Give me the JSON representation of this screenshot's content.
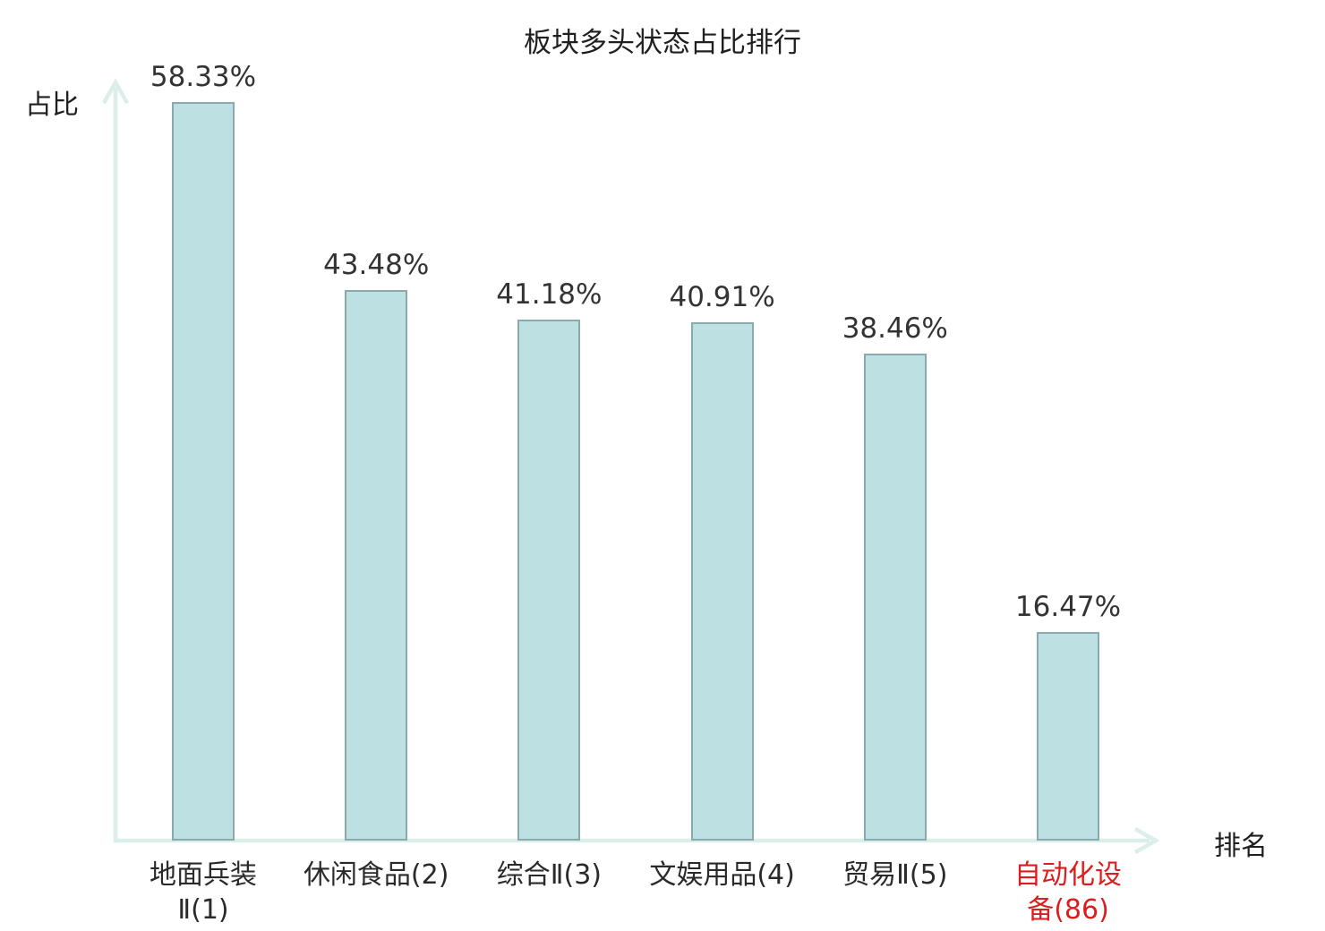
{
  "chart_data": {
    "type": "bar",
    "title": "板块多头状态占比排行",
    "xlabel": "排名",
    "ylabel": "占比",
    "ylim": [
      0,
      60
    ],
    "grid": false,
    "legend": "none",
    "categories": [
      "地面兵装Ⅱ(1)",
      "休闲食品(2)",
      "综合Ⅱ(3)",
      "文娱用品(4)",
      "贸易Ⅱ(5)",
      "自动化设备(86)"
    ],
    "category_lines": [
      [
        "地面兵装",
        "Ⅱ(1)"
      ],
      [
        "休闲食品(2)"
      ],
      [
        "综合Ⅱ(3)"
      ],
      [
        "文娱用品(4)"
      ],
      [
        "贸易Ⅱ(5)"
      ],
      [
        "自动化设",
        "备(86)"
      ]
    ],
    "values": [
      58.33,
      43.48,
      41.18,
      40.91,
      38.46,
      16.47
    ],
    "value_labels": [
      "58.33%",
      "43.48%",
      "41.18%",
      "40.91%",
      "38.46%",
      "16.47%"
    ],
    "highlight_index": 5,
    "colors": {
      "bar_fill": "#bde0e3",
      "bar_border": "#8ca9ae",
      "axis": "#dceeea",
      "text": "#2a2a2a",
      "highlight": "#dd1d1d"
    }
  }
}
